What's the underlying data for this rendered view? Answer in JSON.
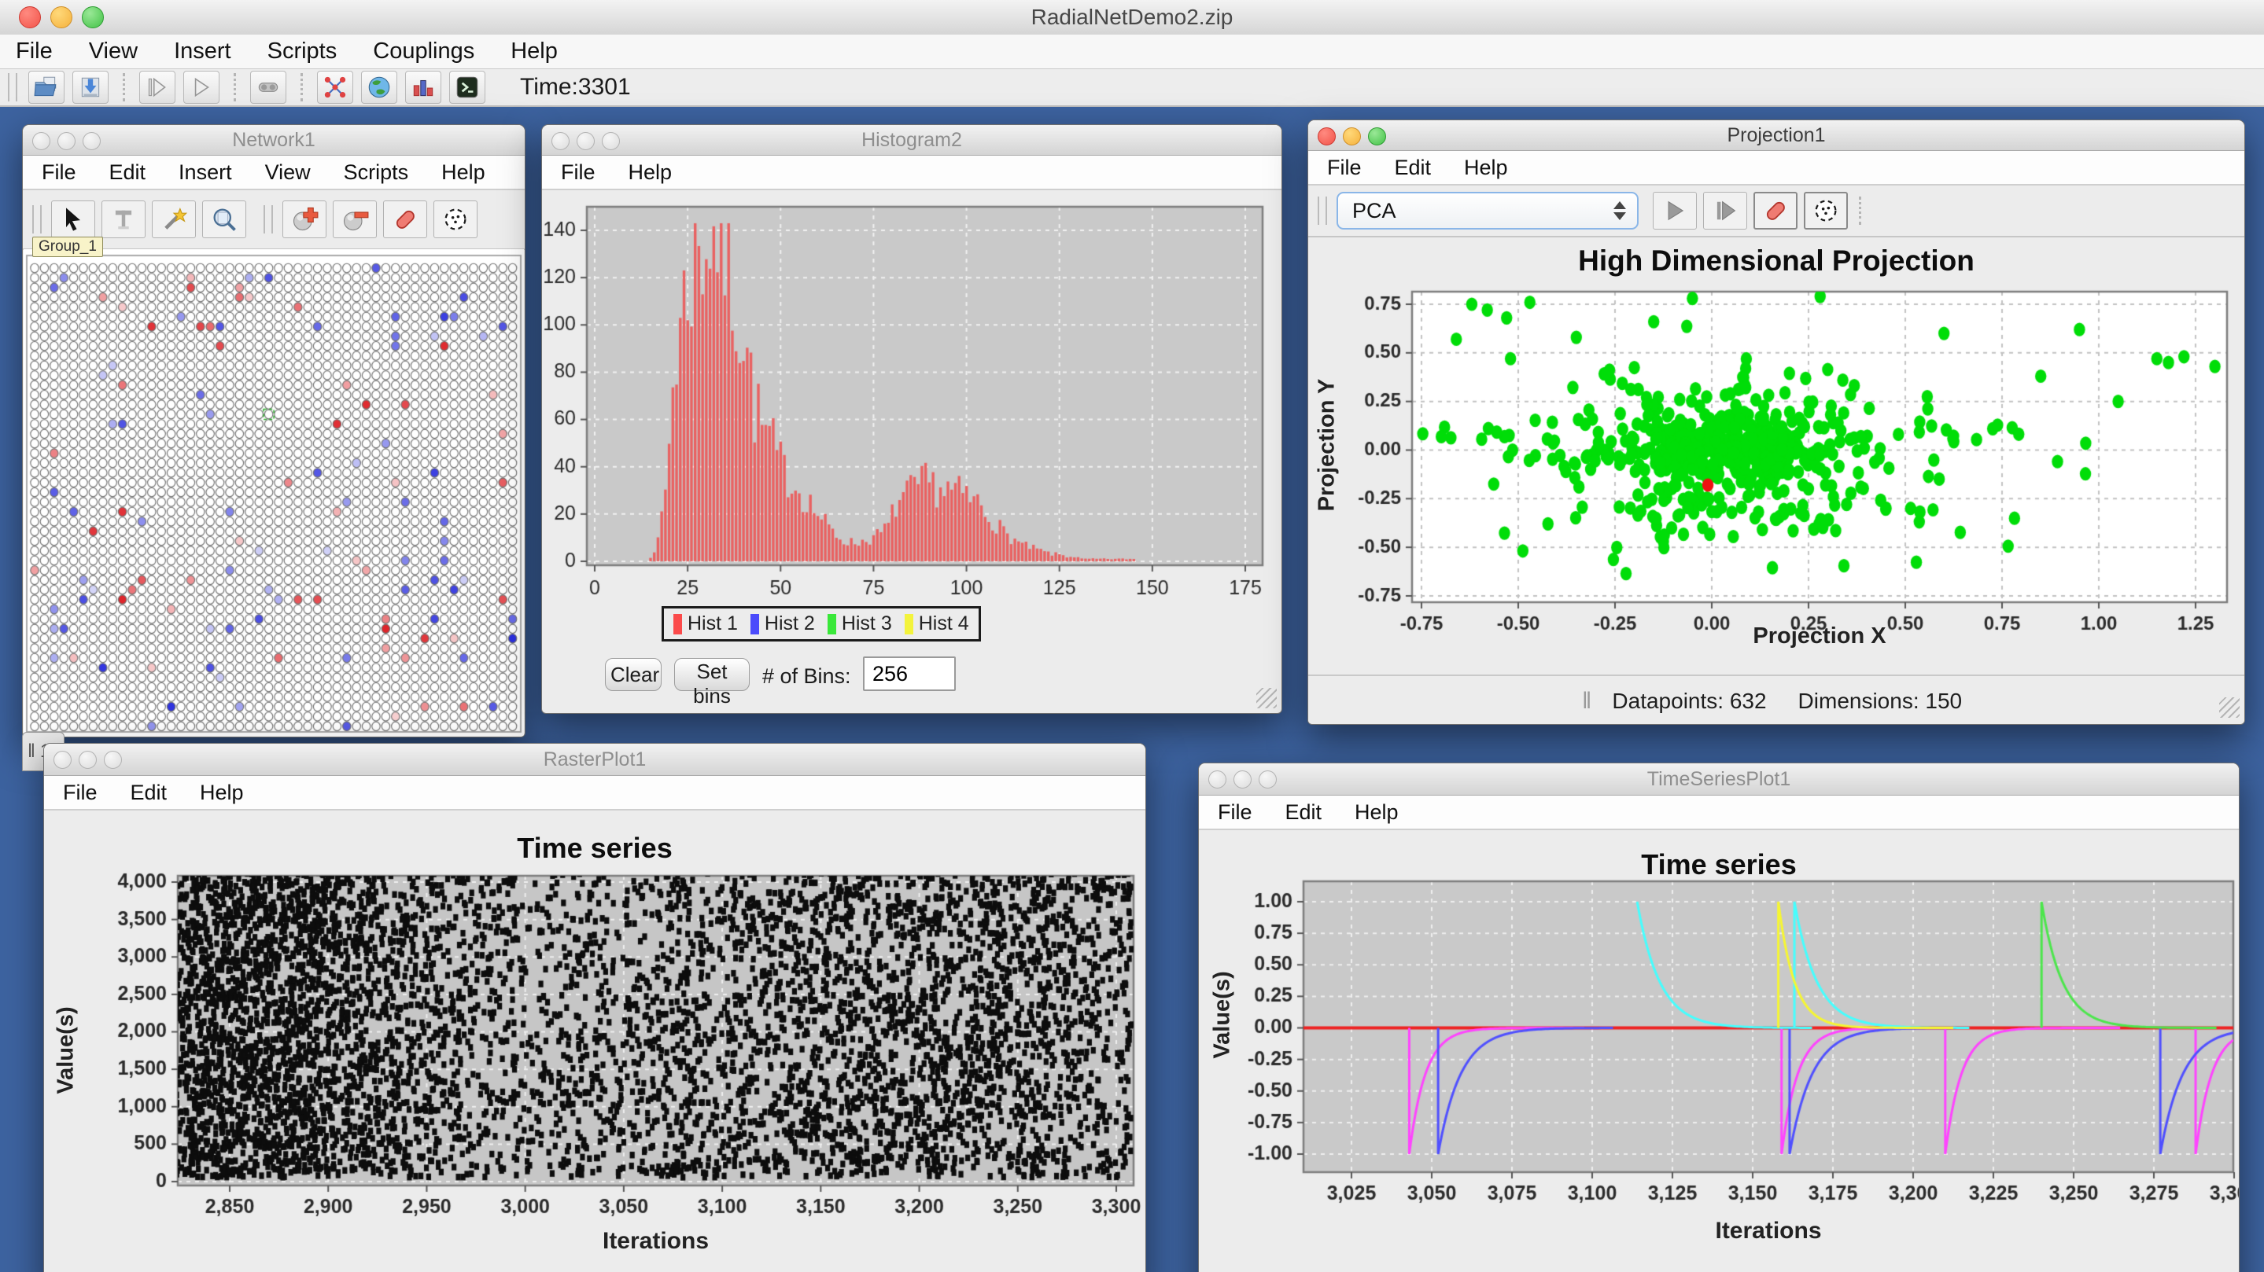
{
  "app": {
    "title": "RadialNetDemo2.zip",
    "menus": [
      "File",
      "View",
      "Insert",
      "Scripts",
      "Couplings",
      "Help"
    ],
    "time_label": "Time:3301",
    "toolbar_icons": [
      "open-workspace-icon",
      "save-workspace-icon",
      "iterate-icon",
      "run-icon",
      "coupling-icon",
      "network-icon",
      "world-icon",
      "plot-icon",
      "console-icon"
    ]
  },
  "colors": {
    "desktop": "#3d63a0",
    "plot_gray_bg": "#c9c9c9",
    "grid_white": "#f2f2f2",
    "grid_gray": "#c2c2c2"
  },
  "windows": {
    "network1": {
      "title": "Network1",
      "menus": [
        "File",
        "Edit",
        "Insert",
        "View",
        "Scripts",
        "Help"
      ],
      "toolbar_icons": [
        "selection-icon",
        "text-icon",
        "wand-icon",
        "zoom-icon",
        "add-neuron-icon",
        "delete-neuron-icon",
        "eraser-icon",
        "randomize-icon"
      ],
      "group_label": "Group_1"
    },
    "histogram2": {
      "title": "Histogram2",
      "menus": [
        "File",
        "Help"
      ],
      "legend": [
        {
          "label": "Hist 1",
          "color": "#fb4b4b"
        },
        {
          "label": "Hist 2",
          "color": "#4b4bfb"
        },
        {
          "label": "Hist 3",
          "color": "#3ae83a"
        },
        {
          "label": "Hist 4",
          "color": "#f3f33c"
        }
      ],
      "clear_label": "Clear",
      "set_bins_label": "Set bins",
      "bins_label": "# of Bins:",
      "bins_value": "256"
    },
    "projection1": {
      "title": "Projection1",
      "menus": [
        "File",
        "Edit",
        "Help"
      ],
      "projection_method": "PCA",
      "toolbar_icons": [
        "play-icon",
        "step-icon",
        "eraser-icon",
        "randomize-icon"
      ],
      "datapoints_label": "Datapoints: 632",
      "dimensions_label": "Dimensions: 150"
    },
    "rasterplot1": {
      "title": "RasterPlot1",
      "menus": [
        "File",
        "Edit",
        "Help"
      ]
    },
    "timeseriesplot1": {
      "title": "TimeSeriesPlot1",
      "menus": [
        "File",
        "Edit",
        "Help"
      ]
    },
    "background_fragment": {
      "text": "1"
    }
  },
  "chart_data": [
    {
      "id": "histogram",
      "type": "bar",
      "title": "",
      "xlabel": "",
      "ylabel": "",
      "xlim": [
        0,
        177
      ],
      "ylim": [
        0,
        146
      ],
      "x_ticks": [
        0,
        25,
        50,
        75,
        100,
        125,
        150,
        175
      ],
      "x_tick_labels": [
        "0",
        "25",
        "50",
        "75",
        "100",
        "125",
        "150",
        "175"
      ],
      "y_ticks": [
        0,
        20,
        40,
        60,
        80,
        100,
        120,
        140
      ],
      "y_tick_labels": [
        "0",
        "20",
        "40",
        "60",
        "80",
        "100",
        "120",
        "140"
      ],
      "grid": true,
      "legend_position": "bottom",
      "series": [
        {
          "name": "Hist 1",
          "color": "#e96161",
          "bin_width": 1,
          "seed": 7,
          "envelope": [
            [
              15,
              2
            ],
            [
              17,
              8
            ],
            [
              19,
              30
            ],
            [
              21,
              75
            ],
            [
              23,
              100
            ],
            [
              25,
              118
            ],
            [
              27,
              128
            ],
            [
              29,
              136
            ],
            [
              31,
              140
            ],
            [
              33,
              138
            ],
            [
              35,
              131
            ],
            [
              37,
              118
            ],
            [
              39,
              104
            ],
            [
              41,
              88
            ],
            [
              43,
              66
            ],
            [
              45,
              56
            ],
            [
              47,
              52
            ],
            [
              49,
              44
            ],
            [
              51,
              38
            ],
            [
              53,
              35
            ],
            [
              55,
              30
            ],
            [
              57,
              27
            ],
            [
              59,
              22
            ],
            [
              61,
              18
            ],
            [
              63,
              14
            ],
            [
              65,
              11
            ],
            [
              67,
              9
            ],
            [
              69,
              8
            ],
            [
              71,
              8
            ],
            [
              73,
              9
            ],
            [
              75,
              10
            ],
            [
              77,
              12
            ],
            [
              79,
              15
            ],
            [
              81,
              24
            ],
            [
              83,
              27
            ],
            [
              85,
              29
            ],
            [
              87,
              31
            ],
            [
              89,
              33
            ],
            [
              91,
              32
            ],
            [
              93,
              31
            ],
            [
              95,
              30
            ],
            [
              97,
              29
            ],
            [
              99,
              28
            ],
            [
              101,
              26
            ],
            [
              103,
              25
            ],
            [
              105,
              21
            ],
            [
              107,
              18
            ],
            [
              109,
              14
            ],
            [
              111,
              11
            ],
            [
              113,
              9
            ],
            [
              115,
              7
            ],
            [
              117,
              6
            ],
            [
              119,
              5
            ],
            [
              121,
              4
            ],
            [
              123,
              3
            ],
            [
              125,
              3
            ],
            [
              127,
              2
            ],
            [
              129,
              2
            ],
            [
              131,
              1
            ],
            [
              133,
              1
            ],
            [
              135,
              1
            ],
            [
              137,
              1
            ],
            [
              139,
              1
            ],
            [
              141,
              1
            ],
            [
              143,
              1
            ],
            [
              145,
              1
            ]
          ]
        }
      ]
    },
    {
      "id": "projection",
      "type": "scatter",
      "title": "High Dimensional Projection",
      "xlabel": "Projection X",
      "ylabel": "Projection Y",
      "xlim": [
        -0.78,
        1.33
      ],
      "ylim": [
        -0.78,
        0.82
      ],
      "x_ticks": [
        -0.75,
        -0.5,
        -0.25,
        0,
        0.25,
        0.5,
        0.75,
        1,
        1.25
      ],
      "x_tick_labels": [
        "-0.75",
        "-0.50",
        "-0.25",
        "0.00",
        "0.25",
        "0.50",
        "0.75",
        "1.00",
        "1.25"
      ],
      "y_ticks": [
        0.75,
        0.5,
        0.25,
        0,
        -0.25,
        -0.5,
        -0.75
      ],
      "y_tick_labels": [
        "0.75",
        "0.50",
        "0.25",
        "0.00",
        "-0.25",
        "-0.50",
        "-0.75"
      ],
      "grid": true,
      "datapoints": 632,
      "dimensions": 150,
      "point_color": "#00dd08",
      "special_point": {
        "x": -0.01,
        "y": -0.18,
        "color": "#ee1111"
      },
      "clusters": [
        {
          "cx": 0.03,
          "cy": 0.0,
          "sx": 0.13,
          "sy": 0.12,
          "n": 280
        },
        {
          "cx": 0.05,
          "cy": -0.02,
          "sx": 0.36,
          "sy": 0.22,
          "n": 140
        },
        {
          "cx": 0.1,
          "cy": -0.32,
          "sx": 0.22,
          "sy": 0.13,
          "n": 29
        }
      ],
      "rays": {
        "cx": 0.03,
        "cy": 0.0,
        "count": 14,
        "points_per_ray": 12,
        "max_len": 0.52
      },
      "outliers": [
        [
          -0.62,
          0.75
        ],
        [
          -0.58,
          0.72
        ],
        [
          -0.53,
          0.68
        ],
        [
          -0.47,
          0.76
        ],
        [
          -0.66,
          0.57
        ],
        [
          -0.52,
          0.47
        ],
        [
          -0.35,
          0.58
        ],
        [
          -0.15,
          0.66
        ],
        [
          -0.05,
          0.78
        ],
        [
          0.28,
          0.79
        ],
        [
          0.6,
          0.6
        ],
        [
          0.95,
          0.62
        ],
        [
          1.15,
          0.47
        ],
        [
          1.22,
          0.48
        ],
        [
          1.3,
          0.43
        ],
        [
          1.05,
          0.25
        ],
        [
          0.85,
          0.38
        ],
        [
          1.18,
          0.45
        ]
      ],
      "seed": 11
    },
    {
      "id": "raster",
      "type": "scatter",
      "title": "Time series",
      "xlabel": "Iterations",
      "ylabel": "Value(s)",
      "xlim": [
        2823,
        3308
      ],
      "ylim": [
        0,
        4200
      ],
      "x_ticks": [
        2850,
        2900,
        2950,
        3000,
        3050,
        3100,
        3150,
        3200,
        3250,
        3300
      ],
      "x_tick_labels": [
        "2,850",
        "2,900",
        "2,950",
        "3,000",
        "3,050",
        "3,100",
        "3,150",
        "3,200",
        "3,250",
        "3,300"
      ],
      "y_ticks": [
        0,
        500,
        1000,
        1500,
        2000,
        2500,
        3000,
        3500,
        4000
      ],
      "y_tick_labels": [
        "0",
        "500",
        "1,000",
        "1,500",
        "2,000",
        "2,500",
        "3,000",
        "3,500",
        "4,000"
      ],
      "grid": true,
      "n_points": 5800,
      "dot_color": "#0d0d0d",
      "density": {
        "base": 0.4,
        "components": [
          {
            "center": 2862,
            "sigma": 55,
            "weight": 0.34
          },
          {
            "center": 3185,
            "sigma": 88,
            "weight": 0.26
          }
        ]
      },
      "seed": 23
    },
    {
      "id": "timeseries",
      "type": "line",
      "title": "Time series",
      "xlabel": "Iterations",
      "ylabel": "Value(s)",
      "xlim": [
        3010,
        3300
      ],
      "ylim": [
        -1.18,
        1.13
      ],
      "x_ticks": [
        3025,
        3050,
        3075,
        3100,
        3125,
        3150,
        3175,
        3200,
        3225,
        3250,
        3275,
        3300
      ],
      "x_tick_labels": [
        "3,025",
        "3,050",
        "3,075",
        "3,100",
        "3,125",
        "3,150",
        "3,175",
        "3,200",
        "3,225",
        "3,250",
        "3,275",
        "3,300"
      ],
      "y_ticks": [
        1,
        0.75,
        0.5,
        0.25,
        0,
        -0.25,
        -0.5,
        -0.75,
        -1
      ],
      "y_tick_labels": [
        "1.00",
        "0.75",
        "0.50",
        "0.25",
        "0.00",
        "-0.25",
        "-0.50",
        "-0.75",
        "-1.00"
      ],
      "grid": true,
      "baseline": {
        "color": "#ee2222",
        "value": 0
      },
      "series": [
        {
          "name": "magenta",
          "color": "#ff44ff",
          "amplitude": -1,
          "tau": 5,
          "spike_times": [
            3043,
            3159,
            3210,
            3288
          ]
        },
        {
          "name": "blue",
          "color": "#5050ff",
          "amplitude": -1,
          "tau": 7,
          "spike_times": [
            3052,
            3161.5,
            3277
          ]
        },
        {
          "name": "cyan",
          "color": "#44ffff",
          "amplitude": 1,
          "tau": 7,
          "spike_times": [
            3114,
            3163
          ],
          "hide_rise": [
            3114
          ]
        },
        {
          "name": "yellow",
          "color": "#f6f632",
          "amplitude": 1,
          "tau": 5,
          "spike_times": [
            3158
          ]
        },
        {
          "name": "green",
          "color": "#4ce64c",
          "amplitude": 1,
          "tau": 6.5,
          "spike_times": [
            3240
          ]
        }
      ]
    },
    {
      "id": "network_grid",
      "type": "grid",
      "cols": 50,
      "rows": 48,
      "pitch": 12.4,
      "radius": 5.2,
      "empty_fill": "#ffffff",
      "stroke": "#6d6d6d",
      "p_red": 0.022,
      "p_blue": 0.03,
      "red_rgb": [
        222,
        34,
        40
      ],
      "blue_rgb": [
        40,
        44,
        222
      ],
      "selected_cell": {
        "col": 24,
        "row": 15,
        "color": "#2fae2f"
      },
      "seed": 5
    }
  ]
}
